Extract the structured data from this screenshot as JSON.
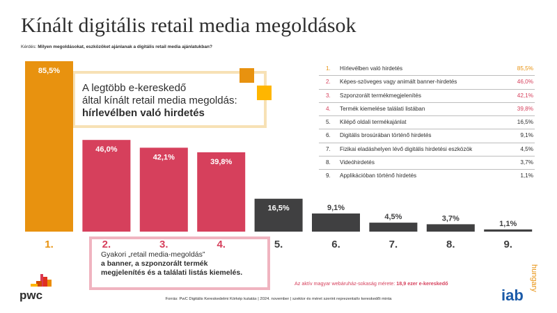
{
  "title": "Kínált digitális retail media megoldások",
  "question": {
    "prefix": "Kérdés: ",
    "text": "Milyen megoldásokat, eszközöket ajánlanak a digitális retail media ajánlatukban?"
  },
  "colors": {
    "orange": "#e8920f",
    "pink": "#d6405c",
    "dark": "#404041",
    "callout_border_orange": "#f7e1b5",
    "callout_border_pink": "#f0b4c0",
    "square_orange": "#e8920f",
    "square_yellow": "#ffb600"
  },
  "callouts": {
    "top_line1": "A legtöbb e-kereskedő",
    "top_line2": "által kínált retail media megoldás:",
    "top_line3": "hírlevélben való hirdetés",
    "bottom_line1": "Gyakori „retail media-megoldás”",
    "bottom_line2": "a banner, a szponzorált termék",
    "bottom_line3": "megjelenítés és a találati listás kiemelés."
  },
  "legend": [
    {
      "num": "1.",
      "label": "Hírlevélben való hirdetés",
      "value": "85,5%"
    },
    {
      "num": "2.",
      "label": "Képes-szöveges vagy animált banner-hirdetés",
      "value": "46,0%"
    },
    {
      "num": "3.",
      "label": "Szponzorált termékmegjelenítés",
      "value": "42,1%"
    },
    {
      "num": "4.",
      "label": "Termék kiemelése találati listában",
      "value": "39,8%"
    },
    {
      "num": "5.",
      "label": "Kilépő oldali termékajánlat",
      "value": "16,5%"
    },
    {
      "num": "6.",
      "label": "Digitális brosúrában történő hirdetés",
      "value": "9,1%"
    },
    {
      "num": "7.",
      "label": "Fizikai eladáshelyen lévő digitális hirdetési eszközök",
      "value": "4,5%"
    },
    {
      "num": "8.",
      "label": "Videóhirdetés",
      "value": "3,7%"
    },
    {
      "num": "9.",
      "label": "Applikációban történő hirdetés",
      "value": "1,1%"
    }
  ],
  "footnote": {
    "text": "Az aktív magyar webáruház-sokaság mérete: ",
    "bold": "18,9 ezer e-kereskedő"
  },
  "source": "Forrás: PwC Digitális Kereskedelmi Körkép kutatás | 2024. november | szektor és méret szerint reprezentatív kereskedői minta",
  "logos": {
    "pwc": "pwc",
    "iab": "iab",
    "iab_sub": "hungary"
  },
  "chart_data": {
    "type": "bar",
    "categories": [
      "1.",
      "2.",
      "3.",
      "4.",
      "5.",
      "6.",
      "7.",
      "8.",
      "9."
    ],
    "values": [
      85.5,
      46.0,
      42.1,
      39.8,
      16.5,
      9.1,
      4.5,
      3.7,
      1.1
    ],
    "value_labels": [
      "85,5%",
      "46,0%",
      "42,1%",
      "39,8%",
      "16,5%",
      "9,1%",
      "4,5%",
      "3,7%",
      "1,1%"
    ],
    "bar_colors": [
      "#e8920f",
      "#d6405c",
      "#d6405c",
      "#d6405c",
      "#404041",
      "#404041",
      "#404041",
      "#404041",
      "#404041"
    ],
    "category_colors": [
      "#e8920f",
      "#d6405c",
      "#d6405c",
      "#d6405c",
      "#404041",
      "#404041",
      "#404041",
      "#404041",
      "#404041"
    ],
    "title": "Kínált digitális retail media megoldások",
    "xlabel": "",
    "ylabel": "",
    "ylim": [
      0,
      100
    ],
    "grid": false
  }
}
